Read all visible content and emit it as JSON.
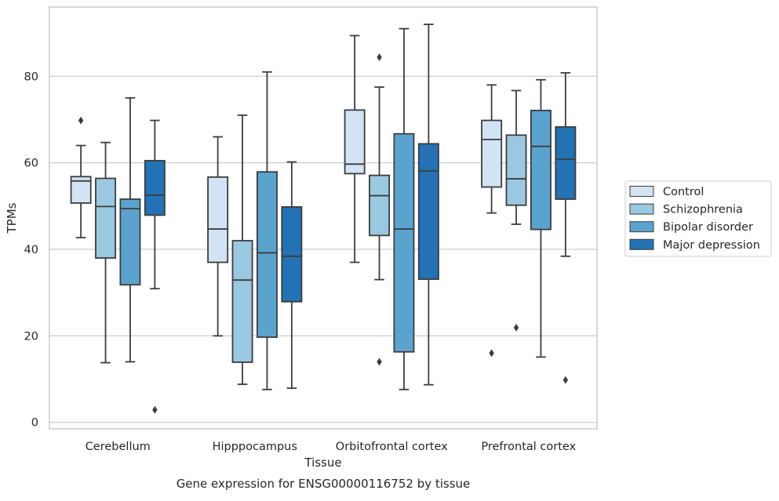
{
  "caption": "Gene expression for ENSG00000116752 by tissue",
  "chart_data": {
    "type": "boxplot",
    "xlabel": "Tissue",
    "ylabel": "TPMs",
    "ylim": [
      -1.5,
      96
    ],
    "yticks": [
      0,
      20,
      40,
      60,
      80
    ],
    "categories": [
      "Cerebellum",
      "Hipppocampus",
      "Orbitofrontal cortex",
      "Prefrontal cortex"
    ],
    "grid": "horizontal",
    "legend_placement": "right",
    "series": [
      {
        "name": "Control",
        "color": "#d2e3f3",
        "boxes": [
          {
            "whislo": 42.7,
            "q1": 50.7,
            "med": 55.8,
            "q3": 56.8,
            "whishi": 64.0,
            "fliers": [
              69.8
            ]
          },
          {
            "whislo": 20.0,
            "q1": 37.0,
            "med": 44.7,
            "q3": 56.7,
            "whishi": 66.0,
            "fliers": []
          },
          {
            "whislo": 37.0,
            "q1": 57.5,
            "med": 59.7,
            "q3": 72.2,
            "whishi": 89.4,
            "fliers": []
          },
          {
            "whislo": 48.4,
            "q1": 54.4,
            "med": 65.4,
            "q3": 69.8,
            "whishi": 78.0,
            "fliers": [
              16.0
            ]
          }
        ]
      },
      {
        "name": "Schizophrenia",
        "color": "#9ac8e0",
        "boxes": [
          {
            "whislo": 13.8,
            "q1": 38.0,
            "med": 49.9,
            "q3": 56.4,
            "whishi": 64.7,
            "fliers": []
          },
          {
            "whislo": 8.8,
            "q1": 13.9,
            "med": 32.9,
            "q3": 42.0,
            "whishi": 71.0,
            "fliers": []
          },
          {
            "whislo": 33.0,
            "q1": 43.2,
            "med": 52.4,
            "q3": 57.1,
            "whishi": 77.5,
            "fliers": [
              14.0,
              84.4
            ]
          },
          {
            "whislo": 45.8,
            "q1": 50.2,
            "med": 56.3,
            "q3": 66.4,
            "whishi": 76.7,
            "fliers": [
              21.9
            ]
          }
        ]
      },
      {
        "name": "Bipolar disorder",
        "color": "#5ba3cf",
        "boxes": [
          {
            "whislo": 14.0,
            "q1": 31.8,
            "med": 49.4,
            "q3": 51.6,
            "whishi": 75.0,
            "fliers": []
          },
          {
            "whislo": 7.6,
            "q1": 19.7,
            "med": 39.2,
            "q3": 57.9,
            "whishi": 81.0,
            "fliers": []
          },
          {
            "whislo": 7.6,
            "q1": 16.3,
            "med": 44.7,
            "q3": 66.7,
            "whishi": 91.0,
            "fliers": []
          },
          {
            "whislo": 15.1,
            "q1": 44.6,
            "med": 63.8,
            "q3": 72.1,
            "whishi": 79.2,
            "fliers": []
          }
        ]
      },
      {
        "name": "Major depression",
        "color": "#2272b5",
        "boxes": [
          {
            "whislo": 30.9,
            "q1": 47.9,
            "med": 52.5,
            "q3": 60.5,
            "whishi": 69.8,
            "fliers": [
              2.9
            ]
          },
          {
            "whislo": 7.9,
            "q1": 27.9,
            "med": 38.4,
            "q3": 49.8,
            "whishi": 60.2,
            "fliers": []
          },
          {
            "whislo": 8.7,
            "q1": 33.1,
            "med": 58.1,
            "q3": 64.4,
            "whishi": 92.0,
            "fliers": []
          },
          {
            "whislo": 38.4,
            "q1": 51.6,
            "med": 60.8,
            "q3": 68.3,
            "whishi": 80.8,
            "fliers": [
              9.8
            ]
          }
        ]
      }
    ]
  }
}
